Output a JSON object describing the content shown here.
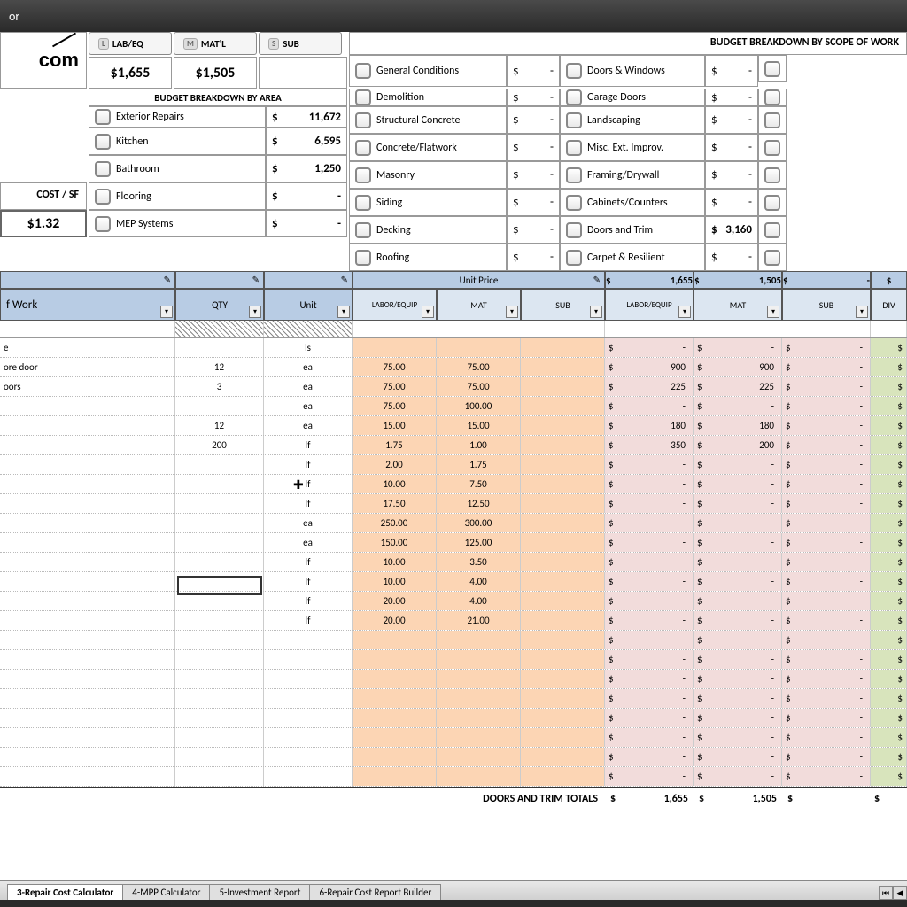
{
  "title": "or",
  "logo_text": "com",
  "header_tabs": [
    {
      "key": "L",
      "label": "LAB/EQ"
    },
    {
      "key": "M",
      "label": "MAT'L"
    },
    {
      "key": "S",
      "label": "SUB"
    }
  ],
  "totals": {
    "lab": "$1,655",
    "mat": "$1,505"
  },
  "scope_header": "BUDGET BREAKDOWN BY SCOPE OF WORK",
  "area_header": "BUDGET BREAKDOWN BY AREA",
  "cost_sf_label": "COST / SF",
  "cost_sf_value": "$1.32",
  "areas": [
    {
      "label": "Exterior Repairs",
      "dollar": "$",
      "val": "11,672"
    },
    {
      "label": "Kitchen",
      "dollar": "$",
      "val": "6,595"
    },
    {
      "label": "Bathroom",
      "dollar": "$",
      "val": "1,250"
    },
    {
      "label": "Flooring",
      "dollar": "$",
      "val": "-"
    },
    {
      "label": "MEP Systems",
      "dollar": "$",
      "val": "-"
    }
  ],
  "scope_col1": [
    {
      "label": "General Conditions",
      "val": "-"
    },
    {
      "label": "Demolition",
      "val": "-"
    },
    {
      "label": "Structural Concrete",
      "val": "-"
    },
    {
      "label": "Concrete/Flatwork",
      "val": "-"
    },
    {
      "label": "Masonry",
      "val": "-"
    },
    {
      "label": "Siding",
      "val": "-"
    },
    {
      "label": "Decking",
      "val": "-"
    },
    {
      "label": "Roofing",
      "val": "-"
    }
  ],
  "scope_col2": [
    {
      "label": "Doors & Windows",
      "val": "-"
    },
    {
      "label": "Garage Doors",
      "val": "-"
    },
    {
      "label": "Landscaping",
      "val": "-"
    },
    {
      "label": "Misc. Ext. Improv.",
      "val": "-"
    },
    {
      "label": "Framing/Drywall",
      "val": "-"
    },
    {
      "label": "Cabinets/Counters",
      "val": "-"
    },
    {
      "label": "Doors and Trim",
      "val": "3,160"
    },
    {
      "label": "Carpet & Resilient",
      "val": "-"
    }
  ],
  "grid_headers": {
    "work": "f Work",
    "qty": "QTY",
    "unit": "Unit",
    "unit_price": "Unit Price",
    "labor": "LABOR/EQUIP",
    "mat": "MAT",
    "sub": "SUB",
    "div": "DIV",
    "top_lab": "1,655",
    "top_mat": "1,505",
    "top_sub": "-"
  },
  "rows": [
    {
      "work": "e",
      "qty": "",
      "unit": "ls",
      "lab": "",
      "mat": "",
      "sub": "",
      "elab": "-",
      "emat": "-",
      "esub": "-"
    },
    {
      "work": "ore door",
      "qty": "12",
      "unit": "ea",
      "lab": "75.00",
      "mat": "75.00",
      "sub": "",
      "elab": "900",
      "emat": "900",
      "esub": "-"
    },
    {
      "work": "oors",
      "qty": "3",
      "unit": "ea",
      "lab": "75.00",
      "mat": "75.00",
      "sub": "",
      "elab": "225",
      "emat": "225",
      "esub": "-"
    },
    {
      "work": "",
      "qty": "",
      "unit": "ea",
      "lab": "75.00",
      "mat": "100.00",
      "sub": "",
      "elab": "-",
      "emat": "-",
      "esub": "-"
    },
    {
      "work": "",
      "qty": "12",
      "unit": "ea",
      "lab": "15.00",
      "mat": "15.00",
      "sub": "",
      "elab": "180",
      "emat": "180",
      "esub": "-"
    },
    {
      "work": "",
      "qty": "200",
      "unit": "lf",
      "lab": "1.75",
      "mat": "1.00",
      "sub": "",
      "elab": "350",
      "emat": "200",
      "esub": "-"
    },
    {
      "work": "",
      "qty": "",
      "unit": "lf",
      "lab": "2.00",
      "mat": "1.75",
      "sub": "",
      "elab": "-",
      "emat": "-",
      "esub": "-"
    },
    {
      "work": "",
      "qty": "",
      "unit": "lf",
      "lab": "10.00",
      "mat": "7.50",
      "sub": "",
      "elab": "-",
      "emat": "-",
      "esub": "-"
    },
    {
      "work": "",
      "qty": "",
      "unit": "lf",
      "lab": "17.50",
      "mat": "12.50",
      "sub": "",
      "elab": "-",
      "emat": "-",
      "esub": "-"
    },
    {
      "work": "",
      "qty": "",
      "unit": "ea",
      "lab": "250.00",
      "mat": "300.00",
      "sub": "",
      "elab": "-",
      "emat": "-",
      "esub": "-"
    },
    {
      "work": "",
      "qty": "",
      "unit": "ea",
      "lab": "150.00",
      "mat": "125.00",
      "sub": "",
      "elab": "-",
      "emat": "-",
      "esub": "-"
    },
    {
      "work": "",
      "qty": "",
      "unit": "lf",
      "lab": "10.00",
      "mat": "3.50",
      "sub": "",
      "elab": "-",
      "emat": "-",
      "esub": "-"
    },
    {
      "work": "",
      "qty": "",
      "unit": "lf",
      "lab": "10.00",
      "mat": "4.00",
      "sub": "",
      "elab": "-",
      "emat": "-",
      "esub": "-"
    },
    {
      "work": "",
      "qty": "",
      "unit": "lf",
      "lab": "20.00",
      "mat": "4.00",
      "sub": "",
      "elab": "-",
      "emat": "-",
      "esub": "-"
    },
    {
      "work": "",
      "qty": "",
      "unit": "lf",
      "lab": "20.00",
      "mat": "21.00",
      "sub": "",
      "elab": "-",
      "emat": "-",
      "esub": "-"
    },
    {
      "work": "",
      "qty": "",
      "unit": "",
      "lab": "",
      "mat": "",
      "sub": "",
      "elab": "-",
      "emat": "-",
      "esub": "-"
    },
    {
      "work": "",
      "qty": "",
      "unit": "",
      "lab": "",
      "mat": "",
      "sub": "",
      "elab": "-",
      "emat": "-",
      "esub": "-"
    },
    {
      "work": "",
      "qty": "",
      "unit": "",
      "lab": "",
      "mat": "",
      "sub": "",
      "elab": "-",
      "emat": "-",
      "esub": "-"
    },
    {
      "work": "",
      "qty": "",
      "unit": "",
      "lab": "",
      "mat": "",
      "sub": "",
      "elab": "-",
      "emat": "-",
      "esub": "-"
    },
    {
      "work": "",
      "qty": "",
      "unit": "",
      "lab": "",
      "mat": "",
      "sub": "",
      "elab": "-",
      "emat": "-",
      "esub": "-"
    },
    {
      "work": "",
      "qty": "",
      "unit": "",
      "lab": "",
      "mat": "",
      "sub": "",
      "elab": "-",
      "emat": "-",
      "esub": "-"
    },
    {
      "work": "",
      "qty": "",
      "unit": "",
      "lab": "",
      "mat": "",
      "sub": "",
      "elab": "-",
      "emat": "-",
      "esub": "-"
    },
    {
      "work": "",
      "qty": "",
      "unit": "",
      "lab": "",
      "mat": "",
      "sub": "",
      "elab": "-",
      "emat": "-",
      "esub": "-"
    }
  ],
  "footer": {
    "label": "DOORS AND TRIM TOTALS",
    "lab": "1,655",
    "mat": "1,505",
    "sub": ""
  },
  "sheet_tabs": [
    {
      "label": "3-Repair Cost Calculator",
      "active": true
    },
    {
      "label": "4-MPP Calculator",
      "active": false
    },
    {
      "label": "5-Investment Report",
      "active": false
    },
    {
      "label": "6-Repair Cost Report Builder",
      "active": false
    }
  ],
  "colors": {
    "header_blue": "#b8cce4",
    "header_light": "#dce6f1",
    "orange": "#fcd5b4",
    "pink": "#f2dcdb",
    "green": "#d8e4bc"
  },
  "col_widths": {
    "work": 198,
    "qty": 100,
    "unit": 100,
    "uprice": 95,
    "ext": 100,
    "div": 28
  }
}
